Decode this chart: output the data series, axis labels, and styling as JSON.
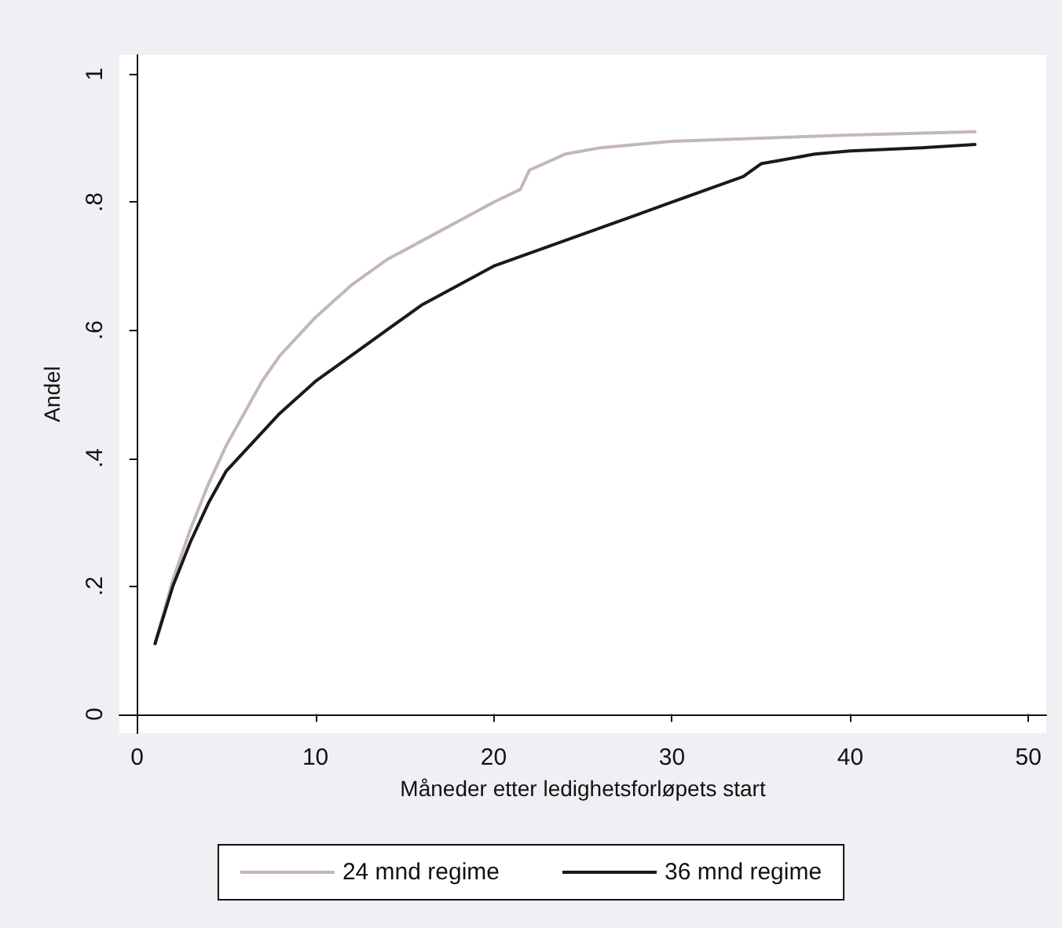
{
  "chart_data": {
    "type": "line",
    "xlabel": "Måneder etter ledighetsforløpets start",
    "ylabel": "Andel",
    "xlim": [
      -1,
      51
    ],
    "xticks": [
      0,
      10,
      20,
      30,
      40,
      50
    ],
    "ylim": [
      -0.03,
      1.03
    ],
    "yticks": [
      {
        "value": 0,
        "label": "0"
      },
      {
        "value": 0.2,
        "label": ".2"
      },
      {
        "value": 0.4,
        "label": ".4"
      },
      {
        "value": 0.6,
        "label": ".6"
      },
      {
        "value": 0.8,
        "label": ".8"
      },
      {
        "value": 1,
        "label": "1"
      }
    ],
    "legend": "bottom",
    "marker": "none",
    "line_style": "solid",
    "series": [
      {
        "name": "24 mnd regime",
        "color": "#c4b8b4",
        "x": [
          1,
          2,
          3,
          4,
          5,
          6,
          7,
          8,
          10,
          12,
          14,
          16,
          18,
          20,
          21.5,
          22,
          24,
          26,
          28,
          30,
          35,
          40,
          47
        ],
        "values": [
          0.11,
          0.21,
          0.29,
          0.36,
          0.42,
          0.47,
          0.52,
          0.56,
          0.62,
          0.67,
          0.71,
          0.74,
          0.77,
          0.8,
          0.82,
          0.85,
          0.875,
          0.885,
          0.89,
          0.895,
          0.9,
          0.905,
          0.91
        ]
      },
      {
        "name": "36 mnd regime",
        "color": "#1a1a1a",
        "x": [
          1,
          2,
          3,
          4,
          5,
          6,
          7,
          8,
          10,
          12,
          14,
          16,
          18,
          20,
          22,
          24,
          26,
          28,
          30,
          32,
          34,
          35,
          36,
          38,
          40,
          44,
          47
        ],
        "values": [
          0.11,
          0.2,
          0.27,
          0.33,
          0.38,
          0.41,
          0.44,
          0.47,
          0.52,
          0.56,
          0.6,
          0.64,
          0.67,
          0.7,
          0.72,
          0.74,
          0.76,
          0.78,
          0.8,
          0.82,
          0.84,
          0.86,
          0.865,
          0.875,
          0.88,
          0.885,
          0.89
        ]
      }
    ]
  }
}
